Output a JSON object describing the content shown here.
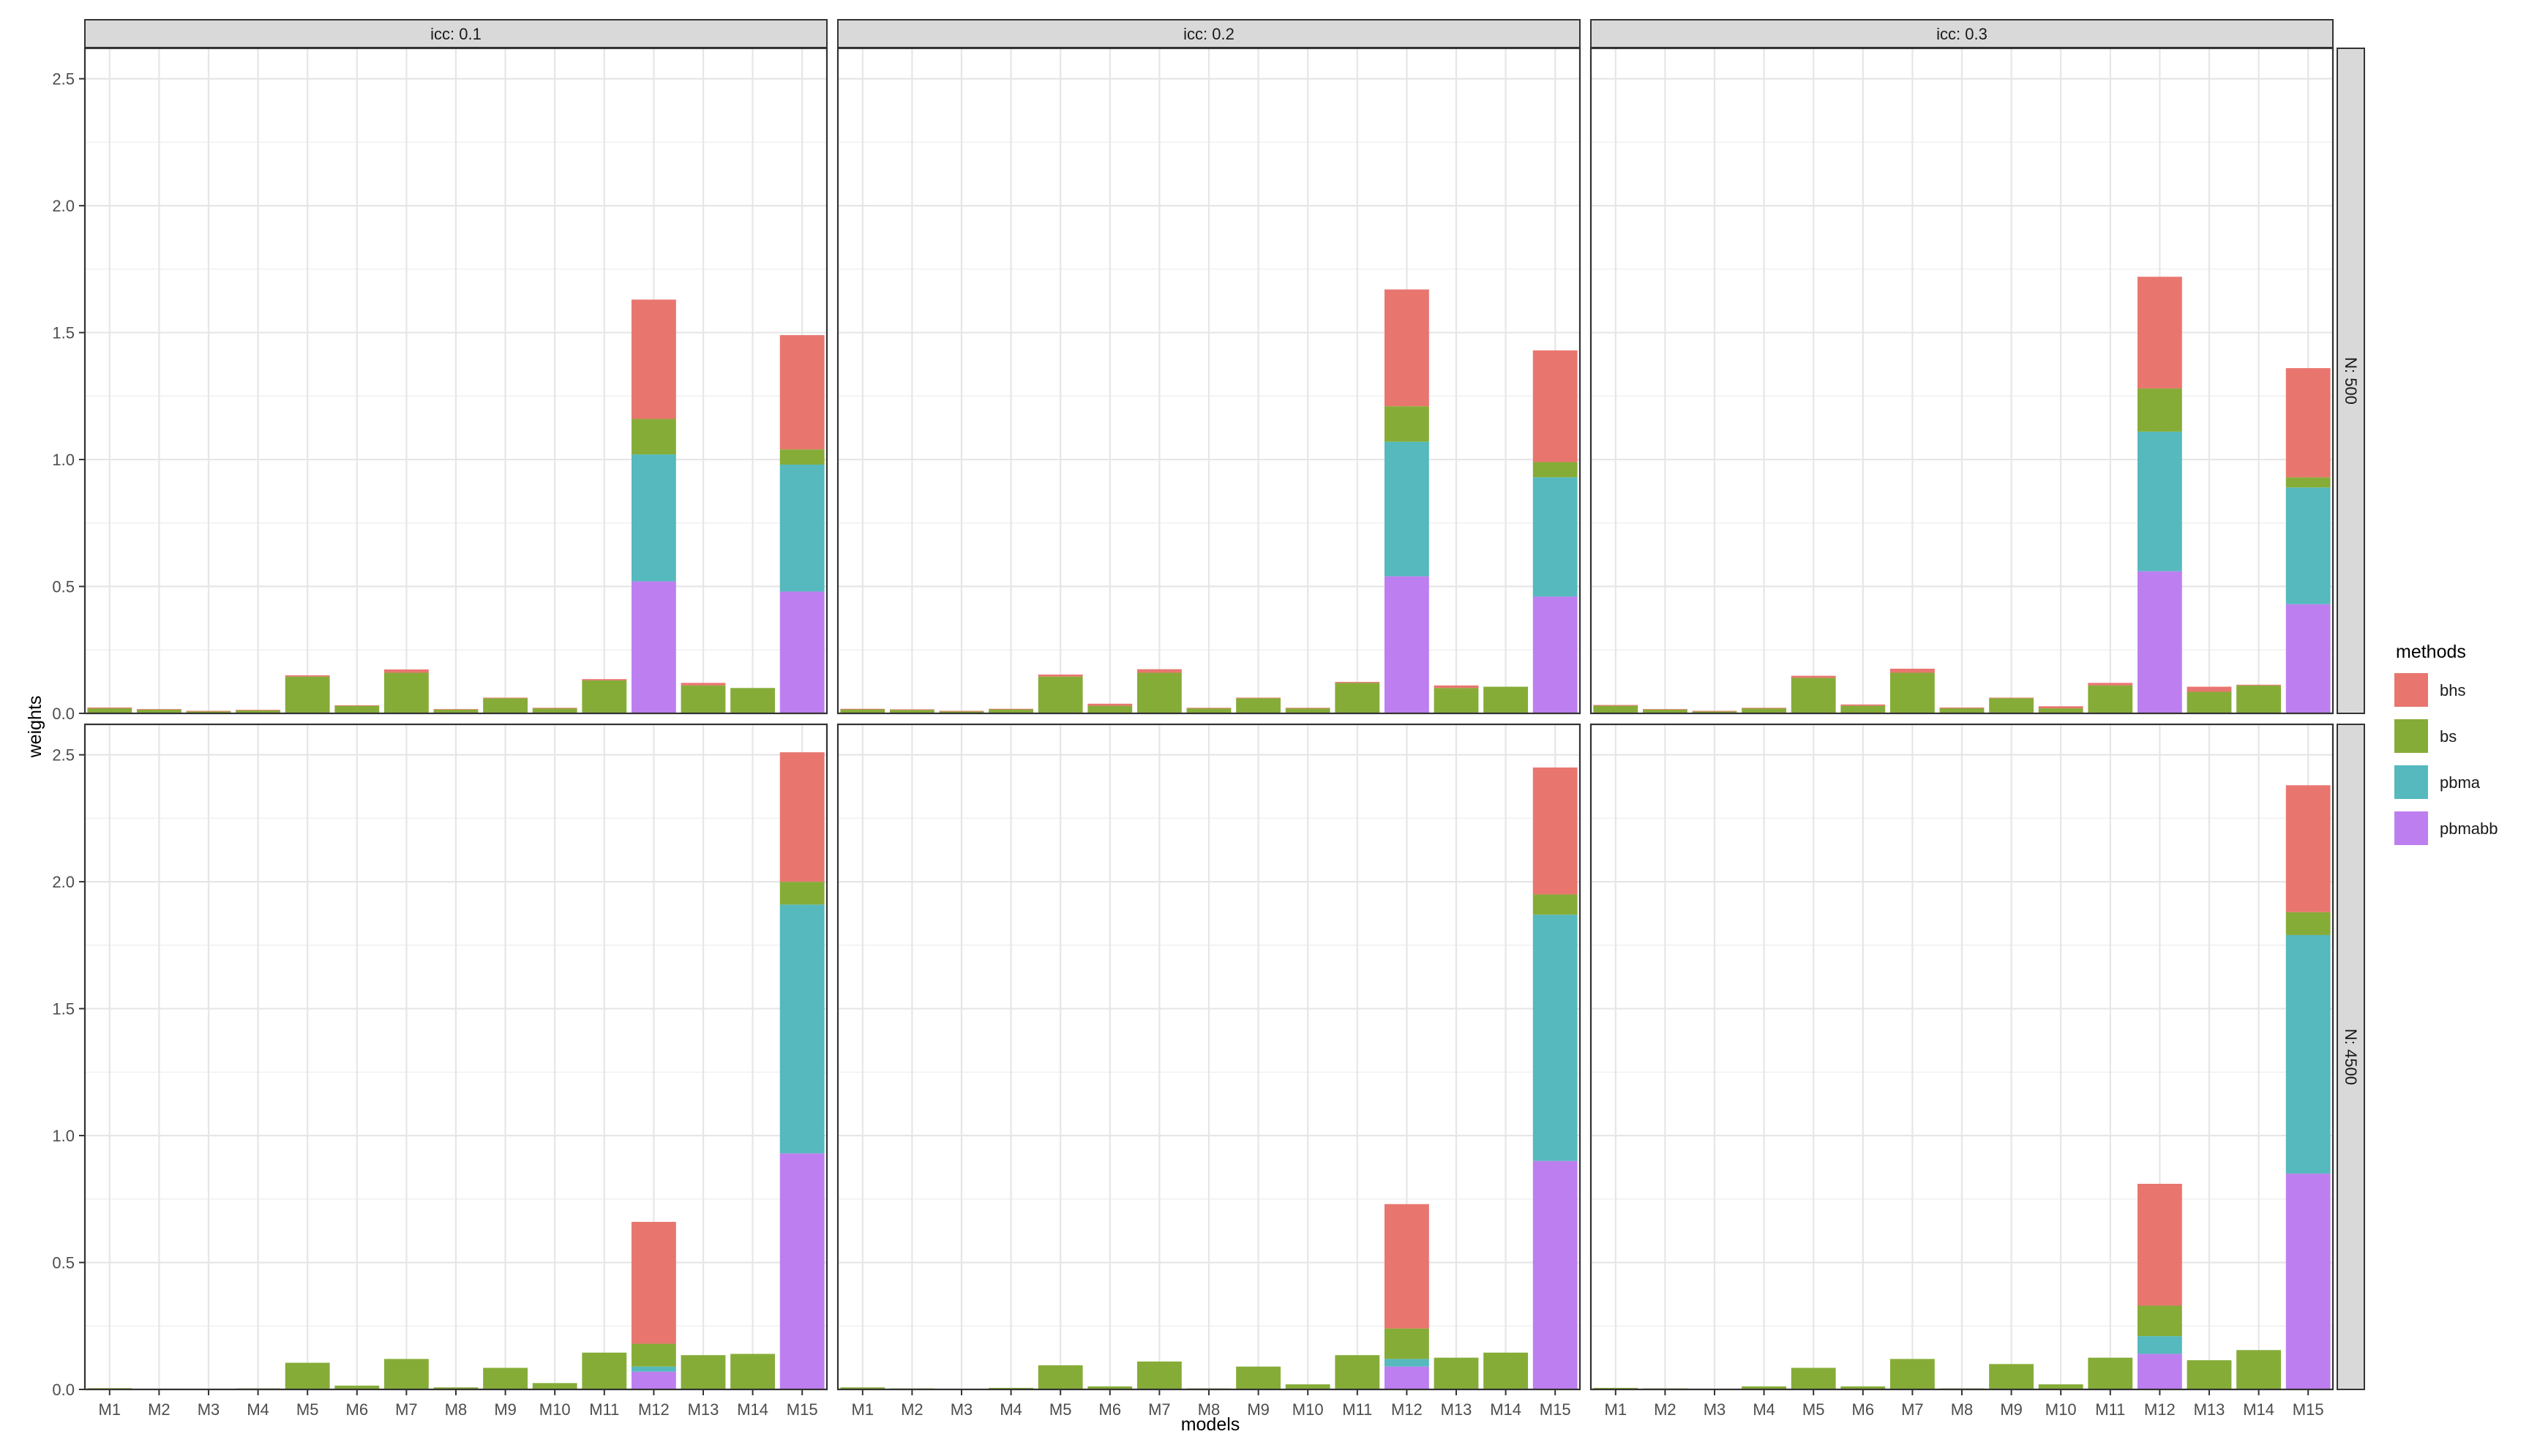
{
  "chart_data": {
    "type": "bar",
    "stacked": true,
    "xlabel": "models",
    "ylabel": "weights",
    "ylim": [
      0,
      2.62
    ],
    "yticks": [
      "0.0",
      "0.5",
      "1.0",
      "1.5",
      "2.0",
      "2.5"
    ],
    "ytick_values": [
      0,
      0.5,
      1.0,
      1.5,
      2.0,
      2.5
    ],
    "grid": true,
    "categories": [
      "M1",
      "M2",
      "M3",
      "M4",
      "M5",
      "M6",
      "M7",
      "M8",
      "M9",
      "M10",
      "M11",
      "M12",
      "M13",
      "M14",
      "M15"
    ],
    "legend": {
      "title": "methods",
      "position": "right",
      "items": [
        {
          "name": "bhs",
          "color": "#E8766F"
        },
        {
          "name": "bs",
          "color": "#86AC38"
        },
        {
          "name": "pbma",
          "color": "#55B9BE"
        },
        {
          "name": "pbmabb",
          "color": "#BD7FEF"
        }
      ]
    },
    "col_facets": [
      "icc: 0.1",
      "icc: 0.2",
      "icc: 0.3"
    ],
    "row_facets": [
      "N: 500",
      "N: 4500"
    ],
    "panels": [
      {
        "col": 0,
        "row": 0,
        "series": [
          {
            "name": "pbmabb",
            "values": [
              0,
              0,
              0,
              0,
              0,
              0,
              0,
              0,
              0,
              0,
              0,
              0.52,
              0,
              0,
              0.48
            ]
          },
          {
            "name": "pbma",
            "values": [
              0,
              0,
              0,
              0,
              0,
              0,
              0,
              0,
              0,
              0,
              0,
              0.5,
              0,
              0,
              0.5
            ]
          },
          {
            "name": "bs",
            "values": [
              0.02,
              0.015,
              0.008,
              0.012,
              0.145,
              0.03,
              0.16,
              0.015,
              0.06,
              0.02,
              0.13,
              0.14,
              0.11,
              0.1,
              0.06
            ]
          },
          {
            "name": "bhs",
            "values": [
              0.003,
              0.002,
              0.002,
              0.002,
              0.005,
              0.002,
              0.013,
              0.002,
              0.002,
              0.002,
              0.005,
              0.47,
              0.01,
              0,
              0.45
            ]
          }
        ]
      },
      {
        "col": 1,
        "row": 0,
        "series": [
          {
            "name": "pbmabb",
            "values": [
              0,
              0,
              0,
              0,
              0,
              0,
              0,
              0,
              0,
              0,
              0,
              0.54,
              0,
              0,
              0.46
            ]
          },
          {
            "name": "pbma",
            "values": [
              0,
              0,
              0,
              0,
              0,
              0,
              0,
              0,
              0,
              0,
              0,
              0.53,
              0,
              0,
              0.47
            ]
          },
          {
            "name": "bs",
            "values": [
              0.016,
              0.014,
              0.008,
              0.016,
              0.145,
              0.03,
              0.16,
              0.02,
              0.06,
              0.02,
              0.12,
              0.14,
              0.1,
              0.105,
              0.06
            ]
          },
          {
            "name": "bhs",
            "values": [
              0.002,
              0.002,
              0.002,
              0.002,
              0.008,
              0.008,
              0.014,
              0.002,
              0.002,
              0.002,
              0.004,
              0.46,
              0.01,
              0,
              0.44
            ]
          }
        ]
      },
      {
        "col": 2,
        "row": 0,
        "series": [
          {
            "name": "pbmabb",
            "values": [
              0,
              0,
              0,
              0,
              0,
              0,
              0,
              0,
              0,
              0,
              0,
              0.56,
              0,
              0,
              0.43
            ]
          },
          {
            "name": "pbma",
            "values": [
              0,
              0,
              0,
              0,
              0,
              0,
              0,
              0,
              0,
              0,
              0,
              0.55,
              0,
              0,
              0.46
            ]
          },
          {
            "name": "bs",
            "values": [
              0.03,
              0.015,
              0.008,
              0.02,
              0.14,
              0.03,
              0.16,
              0.02,
              0.06,
              0.02,
              0.11,
              0.17,
              0.085,
              0.11,
              0.04
            ]
          },
          {
            "name": "bhs",
            "values": [
              0.003,
              0.002,
              0.002,
              0.002,
              0.008,
              0.005,
              0.016,
              0.003,
              0.002,
              0.008,
              0.01,
              0.44,
              0.02,
              0.003,
              0.43
            ]
          }
        ]
      },
      {
        "col": 0,
        "row": 1,
        "series": [
          {
            "name": "pbmabb",
            "values": [
              0,
              0,
              0,
              0,
              0,
              0,
              0,
              0,
              0,
              0,
              0,
              0.07,
              0,
              0,
              0.93
            ]
          },
          {
            "name": "pbma",
            "values": [
              0,
              0,
              0,
              0,
              0,
              0,
              0,
              0,
              0,
              0,
              0,
              0.02,
              0,
              0,
              0.98
            ]
          },
          {
            "name": "bs",
            "values": [
              0.005,
              0.003,
              0,
              0.004,
              0.105,
              0.015,
              0.12,
              0.008,
              0.085,
              0.025,
              0.145,
              0.09,
              0.135,
              0.14,
              0.09
            ]
          },
          {
            "name": "bhs",
            "values": [
              0,
              0,
              0,
              0,
              0,
              0,
              0,
              0,
              0,
              0,
              0,
              0.48,
              0,
              0,
              0.51
            ]
          }
        ]
      },
      {
        "col": 1,
        "row": 1,
        "series": [
          {
            "name": "pbmabb",
            "values": [
              0,
              0,
              0,
              0,
              0,
              0,
              0,
              0,
              0,
              0,
              0,
              0.09,
              0,
              0,
              0.9
            ]
          },
          {
            "name": "pbma",
            "values": [
              0,
              0,
              0,
              0,
              0,
              0,
              0,
              0,
              0,
              0,
              0,
              0.03,
              0,
              0,
              0.97
            ]
          },
          {
            "name": "bs",
            "values": [
              0.008,
              0.004,
              0,
              0.006,
              0.095,
              0.012,
              0.11,
              0.004,
              0.09,
              0.02,
              0.135,
              0.12,
              0.125,
              0.145,
              0.08
            ]
          },
          {
            "name": "bhs",
            "values": [
              0,
              0,
              0,
              0,
              0,
              0,
              0,
              0,
              0,
              0,
              0,
              0.49,
              0,
              0,
              0.5
            ]
          }
        ]
      },
      {
        "col": 2,
        "row": 1,
        "series": [
          {
            "name": "pbmabb",
            "values": [
              0,
              0,
              0,
              0,
              0,
              0,
              0,
              0,
              0,
              0,
              0,
              0.14,
              0,
              0,
              0.85
            ]
          },
          {
            "name": "pbma",
            "values": [
              0,
              0,
              0,
              0,
              0,
              0,
              0,
              0,
              0,
              0,
              0,
              0.07,
              0,
              0,
              0.94
            ]
          },
          {
            "name": "bs",
            "values": [
              0.006,
              0.004,
              0,
              0.012,
              0.085,
              0.012,
              0.12,
              0.004,
              0.1,
              0.02,
              0.125,
              0.12,
              0.115,
              0.155,
              0.09
            ]
          },
          {
            "name": "bhs",
            "values": [
              0,
              0,
              0,
              0,
              0,
              0,
              0,
              0,
              0,
              0,
              0,
              0.48,
              0,
              0,
              0.5
            ]
          }
        ]
      }
    ]
  }
}
